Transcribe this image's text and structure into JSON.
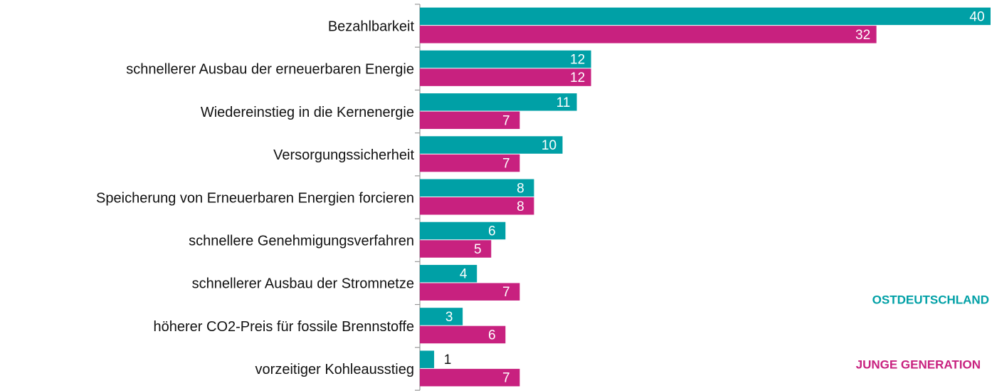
{
  "chart_data": {
    "type": "bar",
    "orientation": "horizontal",
    "categories": [
      "Bezahlbarkeit",
      "schnellerer Ausbau der erneuerbaren Energie",
      "Wiedereinstieg in die Kernenergie",
      "Versorgungssicherheit",
      "Speicherung von Erneuerbaren Energien forcieren",
      "schnellere Genehmigungsverfahren",
      "schnellerer Ausbau der Stromnetze",
      "höherer CO2-Preis für fossile Brennstoffe",
      "vorzeitiger Kohleausstieg"
    ],
    "series": [
      {
        "name": "OSTDEUTSCHLAND",
        "color": "#00a0a6",
        "values": [
          40,
          12,
          11,
          10,
          8,
          6,
          4,
          3,
          1
        ]
      },
      {
        "name": "JUNGE GENERATION",
        "color": "#c8217f",
        "values": [
          32,
          12,
          7,
          7,
          8,
          5,
          7,
          6,
          7
        ]
      }
    ],
    "xlim": [
      0,
      40
    ],
    "legend": "lower right"
  }
}
